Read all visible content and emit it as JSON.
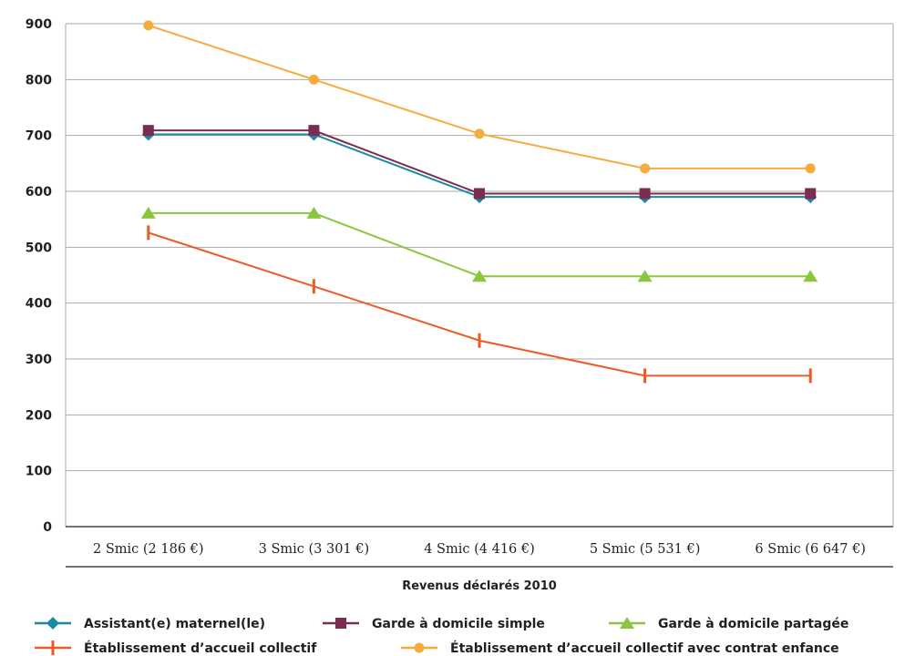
{
  "chart_data": {
    "type": "line",
    "title": "",
    "xlabel": "Revenus déclarés 2010",
    "ylabel": "",
    "ylim": [
      0,
      900
    ],
    "yticks": [
      0,
      100,
      200,
      300,
      400,
      500,
      600,
      700,
      800,
      900
    ],
    "grid": true,
    "legend_position": "bottom",
    "categories": [
      "2 Smic (2 186 €)",
      "3 Smic (3 301 €)",
      "4 Smic (4 416 €)",
      "5 Smic (5 531 €)",
      "6 Smic (6 647 €)"
    ],
    "series": [
      {
        "name": "Assistant(e) maternel(le)",
        "values": [
          702,
          702,
          590,
          590,
          590
        ],
        "color": "#1a8aa3",
        "marker": "diamond"
      },
      {
        "name": "Garde à domicile simple",
        "values": [
          709,
          709,
          596,
          596,
          596
        ],
        "color": "#7b2d4f",
        "marker": "square"
      },
      {
        "name": "Garde à domicile partagée",
        "values": [
          561,
          561,
          448,
          448,
          448
        ],
        "color": "#8cc63f",
        "marker": "triangle"
      },
      {
        "name": "Établissement d’accueil collectif",
        "values": [
          526,
          430,
          333,
          270,
          270
        ],
        "color": "#ee5a24",
        "marker": "bar"
      },
      {
        "name": "Établissement d’accueil collectif avec contrat enfance",
        "values": [
          897,
          800,
          703,
          641,
          641
        ],
        "color": "#f7ab3c",
        "marker": "circle"
      }
    ]
  }
}
